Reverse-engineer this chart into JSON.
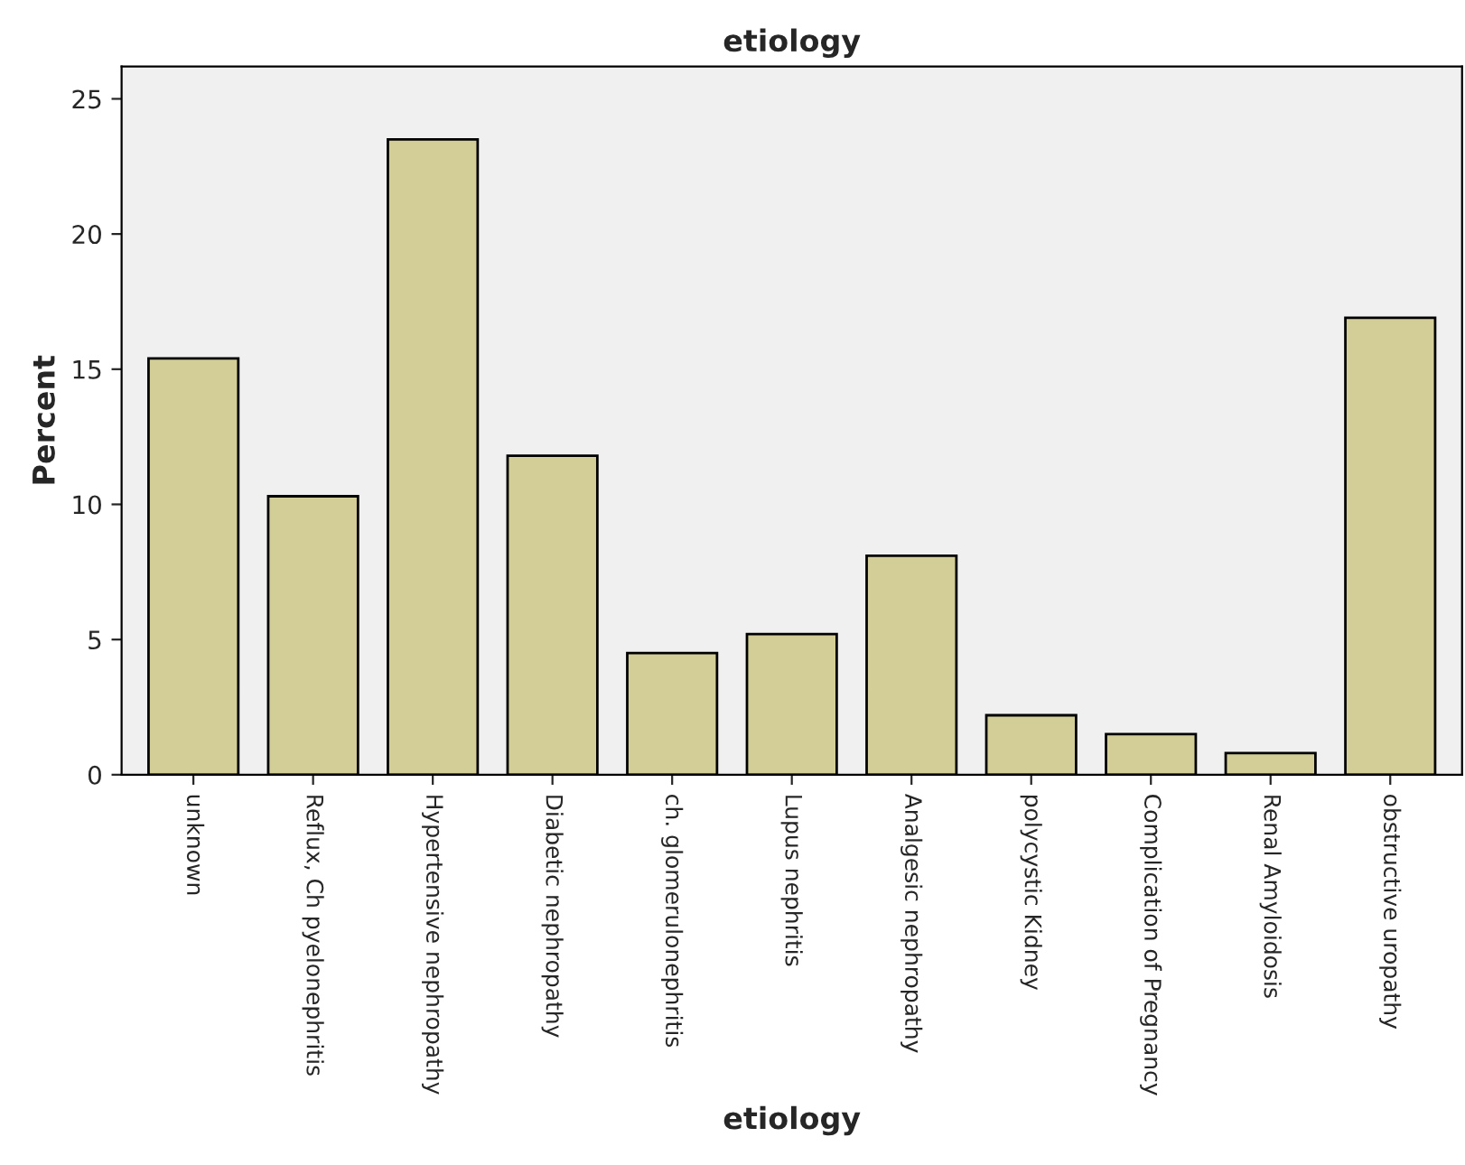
{
  "chart_data": {
    "type": "bar",
    "title": "etiology",
    "xlabel": "etiology",
    "ylabel": "Percent",
    "categories": [
      "unknown",
      "Reflux, Ch pyelonephritis",
      "Hypertensive nephropathy",
      "Diabetic nephropathy",
      "ch. glomerulonephritis",
      "Lupus nephritis",
      "Analgesic nephropathy",
      "polycystic Kidney",
      "Complication of Pregnancy",
      "Renal Amyloidosis",
      "obstructive uropathy"
    ],
    "values": [
      15.4,
      10.3,
      23.5,
      11.8,
      4.5,
      5.2,
      8.1,
      2.2,
      1.5,
      0.8,
      16.9
    ],
    "color": "#d3ce97",
    "ylim": [
      0,
      26.2
    ],
    "yticks": [
      0,
      5,
      10,
      15,
      20,
      25
    ],
    "grid": false,
    "legend": false
  }
}
